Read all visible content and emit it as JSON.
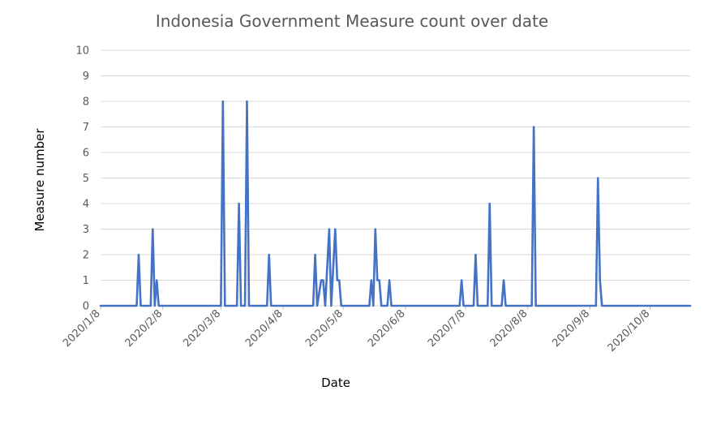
{
  "chart_data": {
    "type": "line",
    "title": "Indonesia Government Measure count over date",
    "xlabel": "Date",
    "ylabel": "Measure number",
    "ylim": [
      0,
      10
    ],
    "y_ticks": [
      "0",
      "1",
      "2",
      "3",
      "4",
      "5",
      "6",
      "7",
      "8",
      "9",
      "10"
    ],
    "x_range": [
      "2020/1/8",
      "2020/10/28"
    ],
    "x_ticks": [
      "2020/1/8",
      "2020/2/8",
      "2020/3/8",
      "2020/4/8",
      "2020/5/8",
      "2020/6/8",
      "2020/7/8",
      "2020/8/8",
      "2020/9/8",
      "2020/10/8"
    ],
    "grid": true,
    "legend": "none",
    "line_color": "#4472c4",
    "series": [
      {
        "points": [
          [
            "2020/1/8",
            0
          ],
          [
            "2020/1/26",
            0
          ],
          [
            "2020/1/27",
            2
          ],
          [
            "2020/1/28",
            0
          ],
          [
            "2020/2/2",
            0
          ],
          [
            "2020/2/3",
            3
          ],
          [
            "2020/2/4",
            0
          ],
          [
            "2020/2/5",
            1
          ],
          [
            "2020/2/6",
            0
          ],
          [
            "2020/3/8",
            0
          ],
          [
            "2020/3/9",
            8
          ],
          [
            "2020/3/10",
            0
          ],
          [
            "2020/3/16",
            0
          ],
          [
            "2020/3/17",
            4
          ],
          [
            "2020/3/18",
            0
          ],
          [
            "2020/3/20",
            0
          ],
          [
            "2020/3/21",
            8
          ],
          [
            "2020/3/22",
            0
          ],
          [
            "2020/3/31",
            0
          ],
          [
            "2020/4/1",
            2
          ],
          [
            "2020/4/2",
            0
          ],
          [
            "2020/4/23",
            0
          ],
          [
            "2020/4/24",
            2
          ],
          [
            "2020/4/25",
            0
          ],
          [
            "2020/4/27",
            1
          ],
          [
            "2020/4/28",
            1
          ],
          [
            "2020/4/29",
            0
          ],
          [
            "2020/5/1",
            3
          ],
          [
            "2020/5/2",
            0
          ],
          [
            "2020/5/4",
            3
          ],
          [
            "2020/5/5",
            1
          ],
          [
            "2020/5/6",
            1
          ],
          [
            "2020/5/7",
            0
          ],
          [
            "2020/5/21",
            0
          ],
          [
            "2020/5/22",
            1
          ],
          [
            "2020/5/23",
            0
          ],
          [
            "2020/5/24",
            3
          ],
          [
            "2020/5/25",
            1
          ],
          [
            "2020/5/26",
            1
          ],
          [
            "2020/5/27",
            0
          ],
          [
            "2020/5/30",
            0
          ],
          [
            "2020/5/31",
            1
          ],
          [
            "2020/6/1",
            0
          ],
          [
            "2020/7/5",
            0
          ],
          [
            "2020/7/6",
            1
          ],
          [
            "2020/7/7",
            0
          ],
          [
            "2020/7/12",
            0
          ],
          [
            "2020/7/13",
            2
          ],
          [
            "2020/7/14",
            0
          ],
          [
            "2020/7/19",
            0
          ],
          [
            "2020/7/20",
            4
          ],
          [
            "2020/7/21",
            0
          ],
          [
            "2020/7/26",
            0
          ],
          [
            "2020/7/27",
            1
          ],
          [
            "2020/7/28",
            0
          ],
          [
            "2020/8/10",
            0
          ],
          [
            "2020/8/11",
            7
          ],
          [
            "2020/8/12",
            0
          ],
          [
            "2020/9/11",
            0
          ],
          [
            "2020/9/12",
            5
          ],
          [
            "2020/9/13",
            1
          ],
          [
            "2020/9/14",
            0
          ],
          [
            "2020/10/28",
            0
          ]
        ]
      }
    ]
  }
}
